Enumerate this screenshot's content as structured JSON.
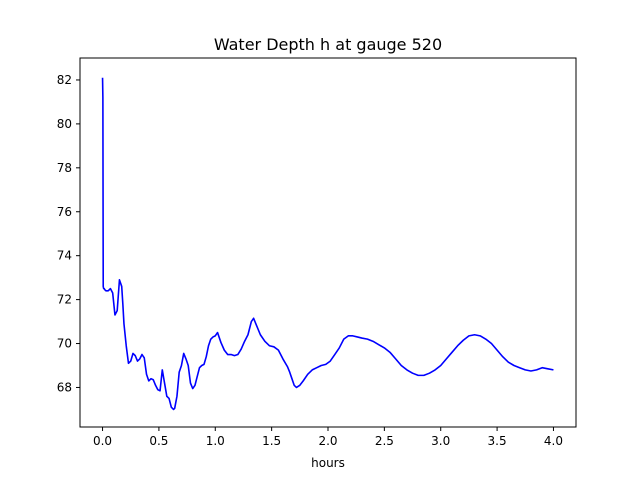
{
  "chart_data": {
    "type": "line",
    "title": "Water Depth h at gauge 520",
    "xlabel": "hours",
    "ylabel": "",
    "xlim": [
      -0.2,
      4.2
    ],
    "ylim": [
      66.2,
      83.0
    ],
    "xticks": [
      0.0,
      0.5,
      1.0,
      1.5,
      2.0,
      2.5,
      3.0,
      3.5,
      4.0
    ],
    "xtick_labels": [
      "0.0",
      "0.5",
      "1.0",
      "1.5",
      "2.0",
      "2.5",
      "3.0",
      "3.5",
      "4.0"
    ],
    "yticks": [
      68,
      70,
      72,
      74,
      76,
      78,
      80,
      82
    ],
    "ytick_labels": [
      "68",
      "70",
      "72",
      "74",
      "76",
      "78",
      "80",
      "82"
    ],
    "grid": false,
    "legend": "none",
    "series": [
      {
        "color": "#0000ff",
        "x": [
          0.0,
          0.003,
          0.006,
          0.01,
          0.015,
          0.02,
          0.03,
          0.05,
          0.07,
          0.09,
          0.11,
          0.13,
          0.15,
          0.17,
          0.18,
          0.19,
          0.21,
          0.23,
          0.25,
          0.27,
          0.29,
          0.31,
          0.33,
          0.35,
          0.37,
          0.39,
          0.41,
          0.43,
          0.45,
          0.47,
          0.49,
          0.51,
          0.53,
          0.55,
          0.57,
          0.59,
          0.61,
          0.63,
          0.64,
          0.66,
          0.68,
          0.7,
          0.72,
          0.74,
          0.76,
          0.78,
          0.8,
          0.82,
          0.84,
          0.86,
          0.88,
          0.9,
          0.92,
          0.94,
          0.96,
          0.98,
          1.0,
          1.02,
          1.05,
          1.08,
          1.11,
          1.14,
          1.17,
          1.2,
          1.23,
          1.26,
          1.29,
          1.32,
          1.34,
          1.36,
          1.4,
          1.44,
          1.48,
          1.52,
          1.56,
          1.6,
          1.64,
          1.66,
          1.68,
          1.7,
          1.72,
          1.75,
          1.78,
          1.82,
          1.86,
          1.9,
          1.94,
          1.98,
          2.02,
          2.06,
          2.1,
          2.14,
          2.18,
          2.22,
          2.26,
          2.3,
          2.35,
          2.4,
          2.45,
          2.5,
          2.55,
          2.6,
          2.65,
          2.7,
          2.75,
          2.8,
          2.85,
          2.9,
          2.95,
          3.0,
          3.05,
          3.1,
          3.15,
          3.2,
          3.25,
          3.3,
          3.35,
          3.4,
          3.45,
          3.5,
          3.55,
          3.6,
          3.65,
          3.7,
          3.75,
          3.8,
          3.85,
          3.9,
          3.95,
          4.0
        ],
        "y": [
          82.1,
          81.2,
          72.6,
          72.5,
          72.5,
          72.45,
          72.4,
          72.4,
          72.5,
          72.3,
          71.3,
          71.5,
          72.9,
          72.6,
          71.8,
          70.9,
          69.9,
          69.1,
          69.2,
          69.55,
          69.45,
          69.2,
          69.3,
          69.5,
          69.35,
          68.6,
          68.3,
          68.4,
          68.35,
          68.1,
          67.9,
          67.85,
          68.8,
          68.2,
          67.6,
          67.5,
          67.1,
          67.0,
          67.05,
          67.6,
          68.7,
          69.0,
          69.55,
          69.3,
          69.0,
          68.2,
          67.95,
          68.1,
          68.5,
          68.9,
          69.0,
          69.05,
          69.4,
          69.9,
          70.2,
          70.3,
          70.35,
          70.5,
          70.05,
          69.7,
          69.5,
          69.5,
          69.45,
          69.5,
          69.75,
          70.1,
          70.4,
          71.0,
          71.15,
          70.9,
          70.4,
          70.1,
          69.9,
          69.85,
          69.7,
          69.3,
          68.95,
          68.7,
          68.4,
          68.1,
          68.0,
          68.1,
          68.3,
          68.6,
          68.8,
          68.9,
          69.0,
          69.05,
          69.2,
          69.5,
          69.8,
          70.2,
          70.35,
          70.35,
          70.3,
          70.25,
          70.2,
          70.1,
          69.95,
          69.8,
          69.6,
          69.3,
          69.0,
          68.8,
          68.65,
          68.55,
          68.55,
          68.65,
          68.8,
          69.0,
          69.3,
          69.6,
          69.9,
          70.15,
          70.35,
          70.4,
          70.35,
          70.2,
          70.0,
          69.7,
          69.4,
          69.15,
          69.0,
          68.9,
          68.8,
          68.75,
          68.8,
          68.9,
          68.85,
          68.8
        ]
      }
    ]
  }
}
